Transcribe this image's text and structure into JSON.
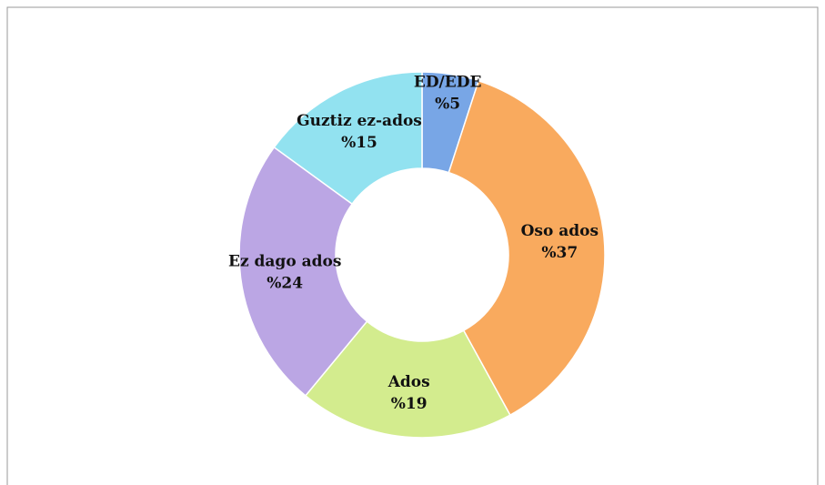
{
  "chart_data": {
    "type": "donut",
    "categories": [
      "ED/EDE",
      "Oso ados",
      "Ados",
      "Ez dago ados",
      "Guztiz ez-ados"
    ],
    "values": [
      5,
      37,
      19,
      24,
      15
    ],
    "value_labels": [
      "%5",
      "%37",
      "%19",
      "%24",
      "%15"
    ],
    "colors": [
      "#78a6e6",
      "#f9aa5e",
      "#d3ec8e",
      "#bba6e4",
      "#92e2f0"
    ]
  }
}
